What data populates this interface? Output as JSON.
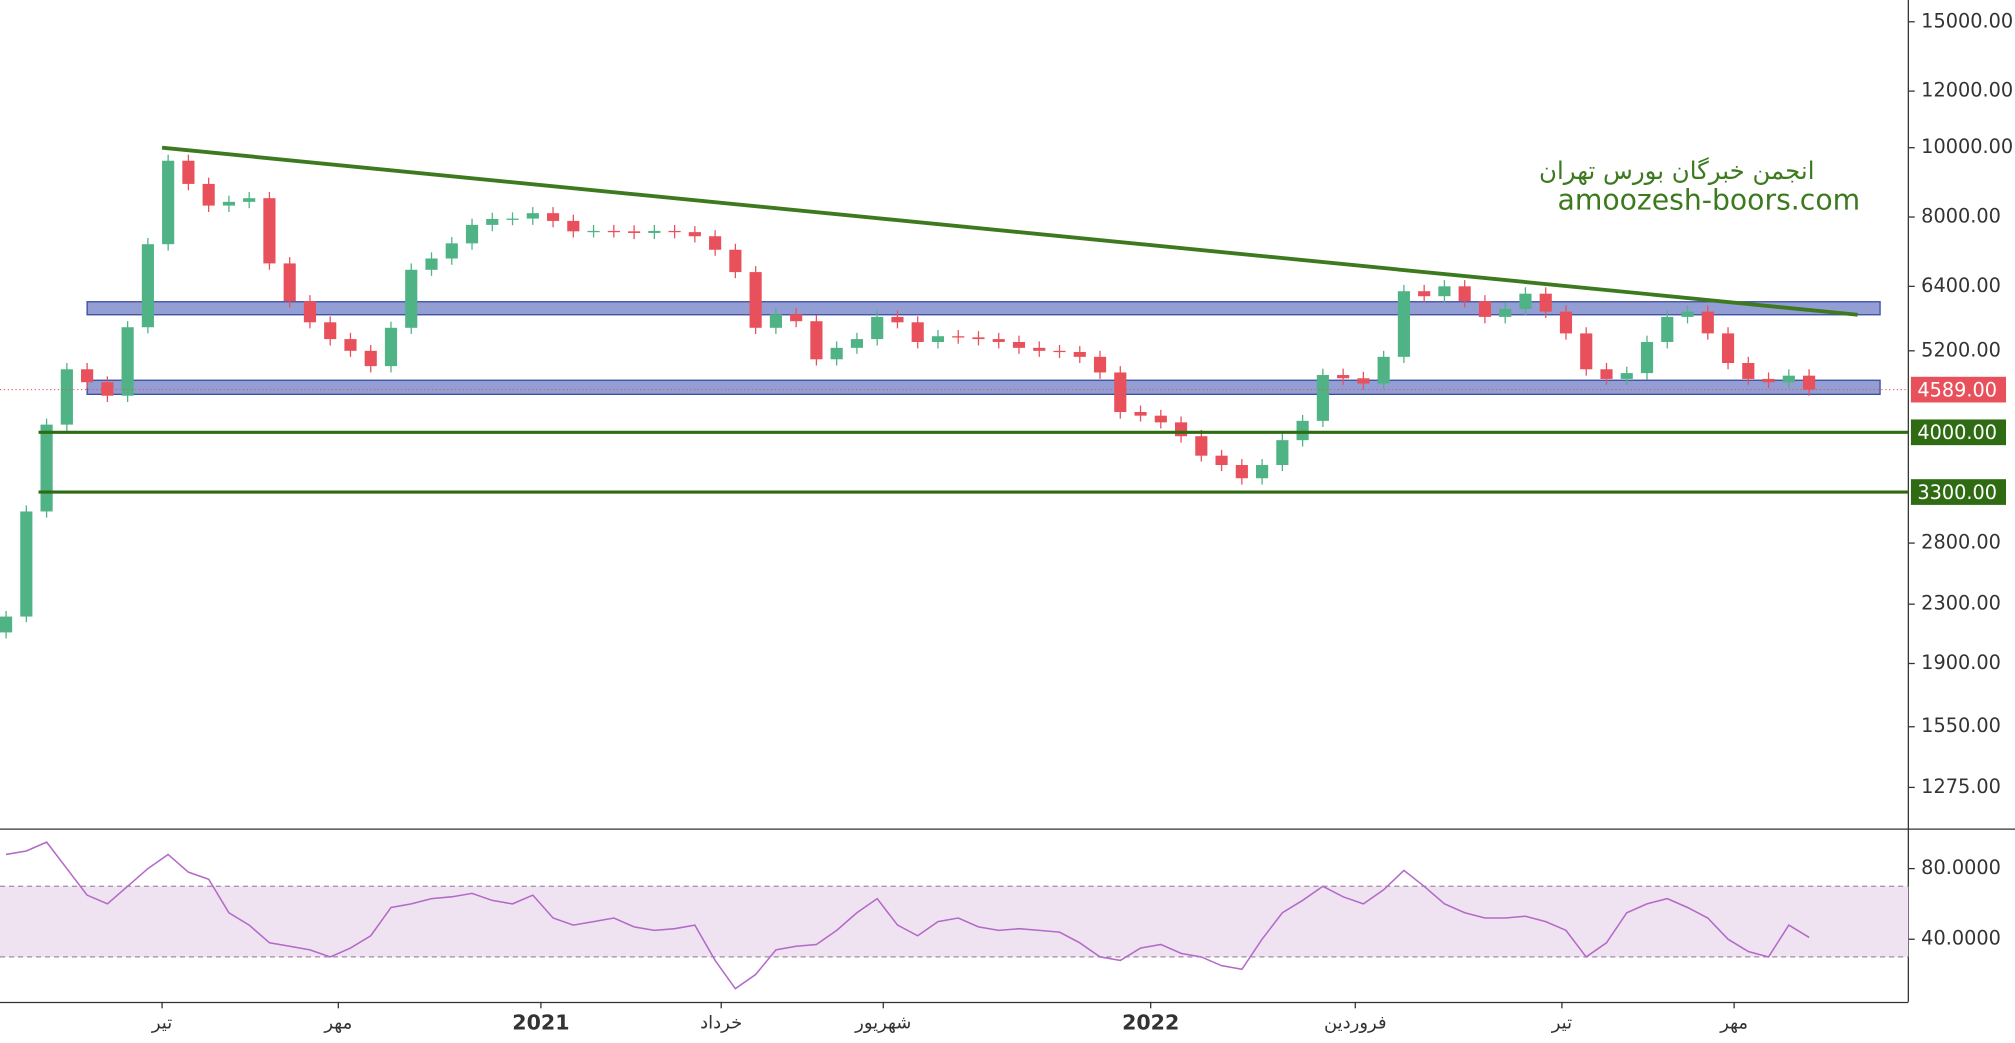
{
  "chart_data": [
    {
      "type": "candlestick",
      "open": [
        2100,
        2210,
        3100,
        4100,
        4900,
        4700,
        4500,
        5610,
        7330,
        9590,
        8900,
        8300,
        8400,
        8500,
        6890,
        6100,
        5700,
        5400,
        5200,
        4950,
        5600,
        6750,
        7000,
        7350,
        7800,
        7950,
        7960,
        8100,
        7900,
        7640,
        7650,
        7640,
        7600,
        7650,
        7620,
        7520,
        7200,
        6700,
        5600,
        5850,
        5720,
        5060,
        5250,
        5400,
        5800,
        5700,
        5350,
        5450,
        5430,
        5400,
        5350,
        5250,
        5200,
        5180,
        5100,
        4850,
        4270,
        4220,
        4130,
        3950,
        3710,
        3600,
        3450,
        3600,
        3900,
        4150,
        4810,
        4760,
        4680,
        5100,
        6300,
        6200,
        6400,
        6100,
        5800,
        5950,
        6250,
        5900,
        5500,
        4900,
        4750,
        4840,
        5350,
        5800,
        5900,
        5500,
        5000,
        4750,
        4700,
        4800
      ],
      "high": [
        2250,
        3160,
        4180,
        5000,
        5000,
        4790,
        5720,
        7480,
        9780,
        9780,
        9080,
        8570,
        8670,
        8670,
        7030,
        6220,
        5810,
        5510,
        5300,
        5710,
        6890,
        7140,
        7500,
        7960,
        8110,
        8120,
        8260,
        8260,
        8060,
        7800,
        7800,
        7790,
        7800,
        7800,
        7770,
        7670,
        7340,
        6830,
        5970,
        5970,
        5830,
        5360,
        5510,
        5920,
        5920,
        5810,
        5560,
        5560,
        5540,
        5510,
        5460,
        5360,
        5300,
        5280,
        5200,
        4950,
        4360,
        4300,
        4210,
        4030,
        3780,
        3670,
        3670,
        3980,
        4230,
        4910,
        4910,
        4860,
        5200,
        6430,
        6430,
        6530,
        6530,
        6220,
        6070,
        6380,
        6380,
        6020,
        5610,
        5000,
        4940,
        5460,
        5920,
        6020,
        6020,
        5610,
        5100,
        4850,
        4900,
        4900
      ],
      "low": [
        2060,
        2170,
        3040,
        4020,
        4610,
        4410,
        4410,
        5500,
        7180,
        8720,
        8130,
        8130,
        8230,
        6750,
        5980,
        5590,
        5290,
        5100,
        4850,
        4850,
        5490,
        6620,
        6860,
        7200,
        7640,
        7790,
        7800,
        7740,
        7490,
        7490,
        7490,
        7450,
        7450,
        7470,
        7370,
        7060,
        6570,
        5490,
        5490,
        5610,
        4960,
        4960,
        5150,
        5290,
        5590,
        5240,
        5240,
        5320,
        5290,
        5240,
        5150,
        5100,
        5080,
        5000,
        4750,
        4180,
        4140,
        4050,
        3870,
        3640,
        3530,
        3380,
        3380,
        3530,
        3820,
        4070,
        4660,
        4590,
        4590,
        5000,
        6080,
        6080,
        5980,
        5680,
        5680,
        5830,
        5780,
        5390,
        4800,
        4660,
        4660,
        4740,
        5240,
        5680,
        5390,
        4900,
        4660,
        4610,
        4610,
        4500
      ],
      "close": [
        2210,
        3100,
        4100,
        4900,
        4700,
        4500,
        5610,
        7330,
        9590,
        8900,
        8300,
        8400,
        8500,
        6890,
        6100,
        5700,
        5400,
        5200,
        4950,
        5600,
        6750,
        7000,
        7350,
        7800,
        7950,
        7960,
        8100,
        7900,
        7640,
        7650,
        7640,
        7600,
        7650,
        7620,
        7520,
        7200,
        6700,
        5600,
        5850,
        5720,
        5060,
        5250,
        5400,
        5800,
        5700,
        5350,
        5450,
        5430,
        5400,
        5350,
        5250,
        5200,
        5180,
        5100,
        4850,
        4270,
        4220,
        4130,
        3950,
        3710,
        3600,
        3450,
        3600,
        3900,
        4150,
        4810,
        4760,
        4680,
        5100,
        6300,
        6200,
        6400,
        6100,
        5800,
        5950,
        6250,
        5900,
        5500,
        4900,
        4750,
        4840,
        5350,
        5800,
        5900,
        5500,
        5000,
        4750,
        4700,
        4800,
        4589
      ],
      "up_color": "#4fb386",
      "down_color": "#e8505b",
      "log_scale": true,
      "xlim": [
        -0.3,
        93.9
      ],
      "ylim": [
        1117,
        16090
      ],
      "yticks": [
        {
          "value": 15000,
          "label": "15000.00"
        },
        {
          "value": 12000,
          "label": "12000.00"
        },
        {
          "value": 10000,
          "label": "10000.00"
        },
        {
          "value": 8000,
          "label": "8000.00"
        },
        {
          "value": 6400,
          "label": "6400.00"
        },
        {
          "value": 5200,
          "label": "5200.00"
        },
        {
          "value": 2800,
          "label": "2800.00"
        },
        {
          "value": 2300,
          "label": "2300.00"
        },
        {
          "value": 1900,
          "label": "1900.00"
        },
        {
          "value": 1550,
          "label": "1550.00"
        },
        {
          "value": 1275,
          "label": "1275.00"
        }
      ],
      "levels": [
        {
          "value": 4000,
          "label": "4000.00",
          "color": "#2e6b12"
        },
        {
          "value": 3300,
          "label": "3300.00",
          "color": "#2e6b12"
        }
      ],
      "last": {
        "value": 4589,
        "label": "4589.00",
        "color": "#e8505b"
      },
      "zones": [
        {
          "from": 5840,
          "to": 6090,
          "color": "#6f7fc6"
        },
        {
          "from": 4520,
          "to": 4730,
          "color": "#6f7fc6"
        }
      ],
      "trendlines": [
        {
          "x": [
            7.7,
            91.4
          ],
          "y": [
            10000,
            5840
          ],
          "color": "#3d7a1f"
        }
      ],
      "annotations": [
        "انجمن خبرگان بورس تهران",
        "amoozesh-boors.com"
      ]
    },
    {
      "type": "line",
      "values": [
        88,
        90,
        95,
        80,
        65,
        60,
        70,
        80,
        88,
        78,
        74,
        55,
        48,
        38,
        36,
        34,
        30,
        35,
        42,
        58,
        60,
        63,
        64,
        66,
        62,
        60,
        65,
        52,
        48,
        50,
        52,
        47,
        45,
        46,
        48,
        28,
        12,
        20,
        34,
        36,
        37,
        45,
        55,
        63,
        48,
        42,
        50,
        52,
        47,
        45,
        46,
        45,
        44,
        38,
        30,
        28,
        35,
        37,
        32,
        30,
        25,
        23,
        40,
        55,
        62,
        70,
        64,
        60,
        68,
        79,
        70,
        60,
        55,
        52,
        52,
        53,
        50,
        45,
        30,
        38,
        55,
        60,
        63,
        58,
        52,
        40,
        33,
        30,
        48,
        41
      ],
      "color": "#b36ac8",
      "band": [
        30,
        70
      ],
      "band_color": "#f0e3f1",
      "xlim": [
        -0.3,
        93.9
      ],
      "ylim": [
        4.5,
        102
      ],
      "yticks": [
        {
          "value": 80,
          "label": "80.0000"
        },
        {
          "value": 40,
          "label": "40.0000"
        }
      ],
      "xticks": [
        {
          "value": 7.7,
          "label": "تیر"
        },
        {
          "value": 16.4,
          "label": "مهر"
        },
        {
          "value": 26.4,
          "label": "2021"
        },
        {
          "value": 35.3,
          "label": "خرداد"
        },
        {
          "value": 43.3,
          "label": "شهریور"
        },
        {
          "value": 56.5,
          "label": "2022"
        },
        {
          "value": 66.6,
          "label": "فروردین"
        },
        {
          "value": 76.8,
          "label": "تیر"
        },
        {
          "value": 85.3,
          "label": "مهر"
        }
      ]
    }
  ]
}
